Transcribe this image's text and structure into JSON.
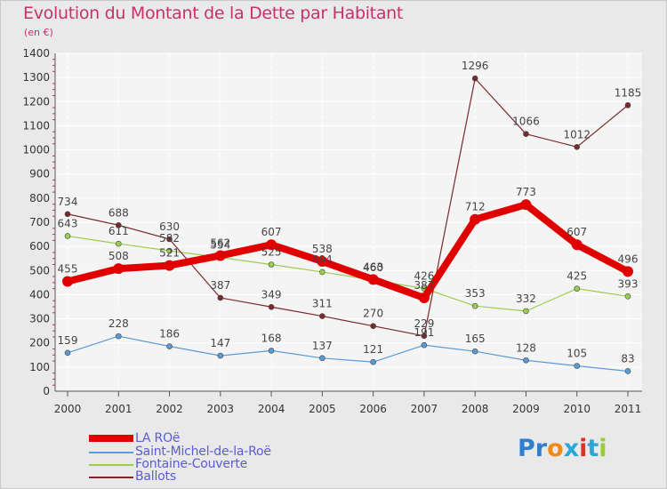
{
  "title": "Evolution du Montant de la Dette par Habitant",
  "subtitle": "(en €)",
  "logo": {
    "text": "Proxiti",
    "letter_colors": [
      "#2f7fd0",
      "#2f7fd0",
      "#f28a1a",
      "#2aa8d8",
      "#e0302a",
      "#2aa8d8",
      "#9acd32"
    ]
  },
  "chart_data": {
    "type": "line",
    "title": "Evolution du Montant de la Dette par Habitant",
    "subtitle": "(en €)",
    "x": [
      "2000",
      "2001",
      "2002",
      "2003",
      "2004",
      "2005",
      "2006",
      "2007",
      "2008",
      "2009",
      "2010",
      "2011"
    ],
    "ylim": [
      0,
      1400
    ],
    "yticks": [
      "0",
      "100",
      "200",
      "300",
      "400",
      "500",
      "600",
      "700",
      "800",
      "900",
      "1000",
      "1100",
      "1200",
      "1300",
      "1400"
    ],
    "grid": true,
    "legend_position": "bottom-left",
    "series": [
      {
        "name": "LA ROë",
        "color": "#e00000",
        "values": [
          455,
          508,
          521,
          562,
          607,
          538,
          463,
          387,
          712,
          773,
          607,
          496
        ],
        "labels": [
          "455",
          "508",
          "521",
          "562",
          "607",
          "538",
          "463",
          "387",
          "712",
          "773",
          "607",
          "496"
        ]
      },
      {
        "name": "Saint-Michel-de-la-Roë",
        "color": "#5b9bd5",
        "values": [
          159,
          228,
          186,
          147,
          168,
          137,
          121,
          191,
          165,
          128,
          105,
          83
        ],
        "labels": [
          "159",
          "228",
          "186",
          "147",
          "168",
          "137",
          "121",
          "191",
          "165",
          "128",
          "105",
          "83"
        ]
      },
      {
        "name": "Fontaine-Couverte",
        "color": "#9acd50",
        "values": [
          643,
          611,
          582,
          554,
          525,
          494,
          460,
          426,
          353,
          332,
          425,
          393
        ],
        "labels": [
          "643",
          "611",
          "582",
          "554",
          "525",
          "494",
          "460",
          "426",
          "353",
          "332",
          "425",
          "393"
        ]
      },
      {
        "name": "Ballots",
        "color": "#7a2a2a",
        "values": [
          734,
          688,
          630,
          387,
          349,
          311,
          270,
          229,
          1296,
          1066,
          1012,
          1185
        ],
        "labels": [
          "734",
          "688",
          "630",
          "387",
          "349",
          "311",
          "270",
          "229",
          "1296",
          "1066",
          "1012",
          "1185"
        ]
      }
    ]
  }
}
